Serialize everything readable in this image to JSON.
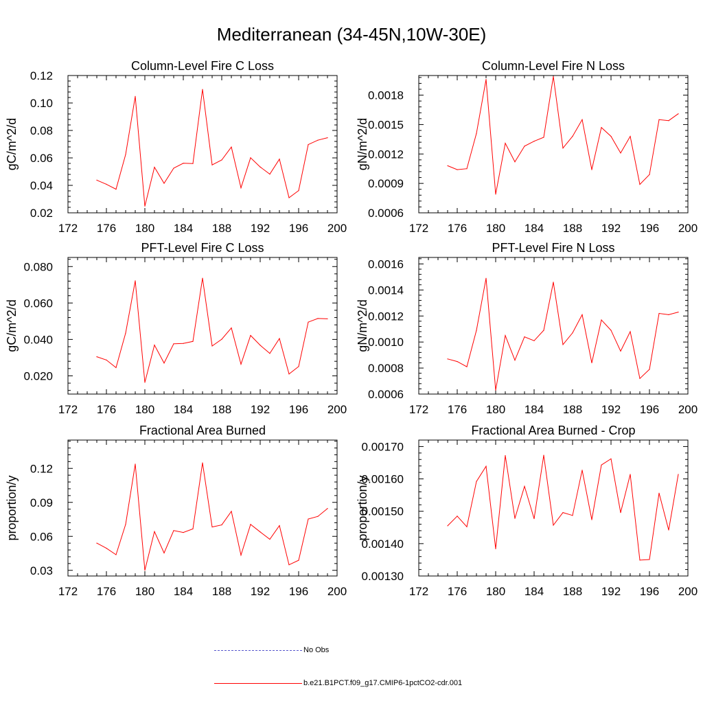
{
  "figure": {
    "title": "Mediterranean (34-45N,10W-30E)"
  },
  "chart_data": [
    {
      "type": "line",
      "title": "Column-Level Fire C Loss",
      "ylabel": "gC/m^2/d",
      "xlim": [
        172,
        200
      ],
      "ylim": [
        0.02,
        0.12
      ],
      "xticks": [
        "172",
        "176",
        "180",
        "184",
        "188",
        "192",
        "196",
        "200"
      ],
      "yticks": [
        "0.02",
        "0.04",
        "0.06",
        "0.08",
        "0.10",
        "0.12"
      ],
      "x": [
        175,
        176,
        177,
        178,
        179,
        180,
        181,
        182,
        183,
        184,
        185,
        186,
        187,
        188,
        189,
        190,
        191,
        192,
        193,
        194,
        195,
        196,
        197,
        198,
        199
      ],
      "series": [
        {
          "name": "b.e21.B1PCT.f09_g17.CMIP6-1pctCO2-cdr.001",
          "color": "#ff0000",
          "values": [
            0.0438,
            0.0408,
            0.0372,
            0.0625,
            0.1048,
            0.0249,
            0.0532,
            0.0415,
            0.0525,
            0.0561,
            0.0559,
            0.1099,
            0.0549,
            0.0585,
            0.0679,
            0.0382,
            0.0601,
            0.0534,
            0.0482,
            0.0591,
            0.031,
            0.0362,
            0.0697,
            0.0729,
            0.0747
          ]
        }
      ]
    },
    {
      "type": "line",
      "title": "Column-Level Fire N Loss",
      "ylabel": "gN/m^2/d",
      "xlim": [
        172,
        200
      ],
      "ylim": [
        0.0006,
        0.002
      ],
      "xticks": [
        "172",
        "176",
        "180",
        "184",
        "188",
        "192",
        "196",
        "200"
      ],
      "yticks": [
        "0.0006",
        "0.0009",
        "0.0012",
        "0.0015",
        "0.0018"
      ],
      "x": [
        175,
        176,
        177,
        178,
        179,
        180,
        181,
        182,
        183,
        184,
        185,
        186,
        187,
        188,
        189,
        190,
        191,
        192,
        193,
        194,
        195,
        196,
        197,
        198,
        199
      ],
      "series": [
        {
          "name": "b.e21.B1PCT.f09_g17.CMIP6-1pctCO2-cdr.001",
          "color": "#ff0000",
          "values": [
            0.00108,
            0.00104,
            0.00105,
            0.00141,
            0.00196,
            0.00079,
            0.00131,
            0.00112,
            0.00128,
            0.00133,
            0.00137,
            0.00199,
            0.00126,
            0.00138,
            0.00155,
            0.00104,
            0.00147,
            0.00138,
            0.00121,
            0.00138,
            0.00089,
            0.00099,
            0.00155,
            0.00154,
            0.00161
          ]
        }
      ]
    },
    {
      "type": "line",
      "title": "PFT-Level Fire C Loss",
      "ylabel": "gC/m^2/d",
      "xlim": [
        172,
        200
      ],
      "ylim": [
        0.01,
        0.085
      ],
      "xticks": [
        "172",
        "176",
        "180",
        "184",
        "188",
        "192",
        "196",
        "200"
      ],
      "yticks": [
        "0.020",
        "0.040",
        "0.060",
        "0.080"
      ],
      "x": [
        175,
        176,
        177,
        178,
        179,
        180,
        181,
        182,
        183,
        184,
        185,
        186,
        187,
        188,
        189,
        190,
        191,
        192,
        193,
        194,
        195,
        196,
        197,
        198,
        199
      ],
      "series": [
        {
          "name": "b.e21.B1PCT.f09_g17.CMIP6-1pctCO2-cdr.001",
          "color": "#ff0000",
          "values": [
            0.0305,
            0.0287,
            0.0245,
            0.0435,
            0.0722,
            0.0164,
            0.0369,
            0.027,
            0.0376,
            0.0378,
            0.0389,
            0.0736,
            0.0364,
            0.0401,
            0.0463,
            0.0264,
            0.0422,
            0.0368,
            0.0323,
            0.0405,
            0.021,
            0.0251,
            0.0495,
            0.0515,
            0.0513
          ]
        }
      ]
    },
    {
      "type": "line",
      "title": "PFT-Level Fire N Loss",
      "ylabel": "gN/m^2/d",
      "xlim": [
        172,
        200
      ],
      "ylim": [
        0.0006,
        0.00165
      ],
      "xticks": [
        "172",
        "176",
        "180",
        "184",
        "188",
        "192",
        "196",
        "200"
      ],
      "yticks": [
        "0.0006",
        "0.0008",
        "0.0010",
        "0.0012",
        "0.0014",
        "0.0016"
      ],
      "x": [
        175,
        176,
        177,
        178,
        179,
        180,
        181,
        182,
        183,
        184,
        185,
        186,
        187,
        188,
        189,
        190,
        191,
        192,
        193,
        194,
        195,
        196,
        197,
        198,
        199
      ],
      "series": [
        {
          "name": "b.e21.B1PCT.f09_g17.CMIP6-1pctCO2-cdr.001",
          "color": "#ff0000",
          "values": [
            0.00087,
            0.00085,
            0.00081,
            0.00109,
            0.00149,
            0.00063,
            0.00105,
            0.00086,
            0.00104,
            0.00101,
            0.00109,
            0.00146,
            0.00098,
            0.00107,
            0.00121,
            0.00084,
            0.00117,
            0.00109,
            0.00093,
            0.00108,
            0.00072,
            0.00079,
            0.00122,
            0.00121,
            0.00123
          ]
        }
      ]
    },
    {
      "type": "line",
      "title": "Fractional Area Burned",
      "ylabel": "proportion/y",
      "xlim": [
        172,
        200
      ],
      "ylim": [
        0.025,
        0.145
      ],
      "xticks": [
        "172",
        "176",
        "180",
        "184",
        "188",
        "192",
        "196",
        "200"
      ],
      "yticks": [
        "0.03",
        "0.06",
        "0.09",
        "0.12"
      ],
      "x": [
        175,
        176,
        177,
        178,
        179,
        180,
        181,
        182,
        183,
        184,
        185,
        186,
        187,
        188,
        189,
        190,
        191,
        192,
        193,
        194,
        195,
        196,
        197,
        198,
        199
      ],
      "series": [
        {
          "name": "b.e21.B1PCT.f09_g17.CMIP6-1pctCO2-cdr.001",
          "color": "#ff0000",
          "values": [
            0.054,
            0.0495,
            0.0438,
            0.0706,
            0.1238,
            0.0301,
            0.0642,
            0.0453,
            0.0651,
            0.0634,
            0.0666,
            0.1249,
            0.0683,
            0.0701,
            0.0821,
            0.0434,
            0.0706,
            0.0639,
            0.0574,
            0.0695,
            0.0349,
            0.0389,
            0.0753,
            0.0776,
            0.0846
          ]
        }
      ]
    },
    {
      "type": "line",
      "title": "Fractional Area Burned - Crop",
      "ylabel": "proportion/y",
      "xlim": [
        172,
        200
      ],
      "ylim": [
        0.0013,
        0.00172
      ],
      "xticks": [
        "172",
        "176",
        "180",
        "184",
        "188",
        "192",
        "196",
        "200"
      ],
      "yticks": [
        "0.00130",
        "0.00140",
        "0.00150",
        "0.00160",
        "0.00170"
      ],
      "x": [
        175,
        176,
        177,
        178,
        179,
        180,
        181,
        182,
        183,
        184,
        185,
        186,
        187,
        188,
        189,
        190,
        191,
        192,
        193,
        194,
        195,
        196,
        197,
        198,
        199
      ],
      "series": [
        {
          "name": "b.e21.B1PCT.f09_g17.CMIP6-1pctCO2-cdr.001",
          "color": "#ff0000",
          "values": [
            0.001455,
            0.001485,
            0.001452,
            0.001592,
            0.001639,
            0.001384,
            0.001672,
            0.001478,
            0.001577,
            0.001477,
            0.001673,
            0.001457,
            0.001496,
            0.001487,
            0.001627,
            0.001474,
            0.001643,
            0.001662,
            0.001496,
            0.001614,
            0.001349,
            0.001351,
            0.001556,
            0.001442,
            0.001614
          ]
        }
      ]
    }
  ],
  "legend": {
    "items": [
      {
        "label": "No Obs",
        "style": "dash",
        "color": "#5555cc"
      },
      {
        "label": "b.e21.B1PCT.f09_g17.CMIP6-1pctCO2-cdr.001",
        "style": "solid",
        "color": "#ff0000"
      }
    ]
  }
}
